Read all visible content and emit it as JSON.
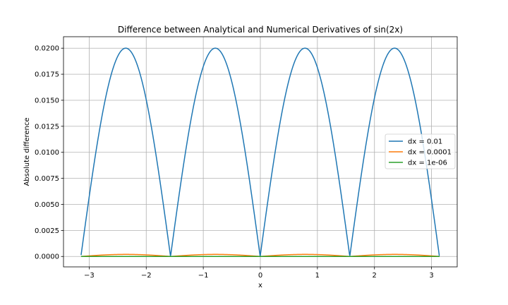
{
  "chart_data": {
    "type": "line",
    "title": "Difference between Analytical and Numerical Derivatives of sin(2x)",
    "xlabel": "x",
    "ylabel": "Absolute difference",
    "xlim": [
      -3.45,
      3.45
    ],
    "ylim": [
      -0.001,
      0.0211
    ],
    "x_ticks": [
      -3,
      -2,
      -1,
      0,
      1,
      2,
      3
    ],
    "x_tick_labels": [
      "−3",
      "−2",
      "−1",
      "0",
      "1",
      "2",
      "3"
    ],
    "y_ticks": [
      0,
      0.0025,
      0.005,
      0.0075,
      0.01,
      0.0125,
      0.015,
      0.0175,
      0.02
    ],
    "y_tick_labels": [
      "0.0000",
      "0.0025",
      "0.0050",
      "0.0075",
      "0.0100",
      "0.0125",
      "0.0150",
      "0.0175",
      "0.0200"
    ],
    "grid": true,
    "legend_position": "center-right",
    "x_range": [
      -3.14159,
      3.14159
    ],
    "series": [
      {
        "name": "dx = 0.01",
        "color": "#1f77b4",
        "dx": 0.01
      },
      {
        "name": "dx = 0.0001",
        "color": "#ff7f0e",
        "dx": 0.0001
      },
      {
        "name": "dx = 1e-06",
        "color": "#2ca02c",
        "dx": 1e-06
      }
    ]
  }
}
